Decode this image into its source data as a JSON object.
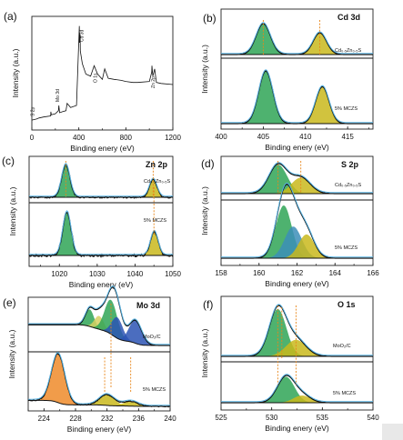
{
  "chart_data": [
    {
      "id": "a",
      "type": "line",
      "panel_label": "(a)",
      "title": "",
      "xlabel": "Binding enery (eV)",
      "ylabel": "Intensity (a.u.)",
      "xlim": [
        0,
        1200
      ],
      "xticks": [
        "0",
        "400",
        "800",
        "1200"
      ],
      "annotations": [
        "S 2p",
        "Mo 3d",
        "Cd 3d",
        "O 1s",
        "Zn 2p"
      ],
      "series": [
        {
          "x": [
            0,
            40,
            60,
            100,
            160,
            162,
            166,
            200,
            226,
            230,
            236,
            260,
            290,
            300,
            330,
            380,
            404,
            406,
            411,
            413,
            430,
            460,
            500,
            530,
            560,
            600,
            620,
            650,
            700,
            760,
            800,
            860,
            900,
            1000,
            1020,
            1022,
            1030,
            1045,
            1060,
            1100,
            1200
          ],
          "y": [
            6,
            7,
            8,
            9,
            10,
            14,
            11,
            12,
            15,
            20,
            13,
            14,
            15,
            22,
            18,
            20,
            96,
            80,
            88,
            72,
            60,
            50,
            48,
            58,
            50,
            45,
            55,
            46,
            45,
            44,
            43,
            42,
            42,
            43,
            52,
            58,
            48,
            55,
            42,
            41,
            40
          ]
        }
      ]
    },
    {
      "id": "b",
      "type": "area",
      "panel_label": "(b)",
      "title": "Cd 3d",
      "xlabel": "Binding enery (eV)",
      "ylabel": "Intensity (a.u.)",
      "xlim": [
        400,
        418
      ],
      "xticks": [
        "400",
        "405",
        "410",
        "415"
      ],
      "series": [
        {
          "name": "Cd₀.₅Zn₀.₅S",
          "peaks": [
            {
              "center": 405.0,
              "height": 1.0,
              "color": "#2fa556"
            },
            {
              "center": 411.7,
              "height": 0.7,
              "color": "#c9b81c"
            }
          ]
        },
        {
          "name": "5% MCZS",
          "peaks": [
            {
              "center": 405.3,
              "height": 1.0,
              "color": "#2fa556"
            },
            {
              "center": 412.0,
              "height": 0.7,
              "color": "#c9b81c"
            }
          ]
        }
      ]
    },
    {
      "id": "c",
      "type": "area",
      "panel_label": "(c)",
      "title": "Zn 2p",
      "xlabel": "Binding enery (eV)",
      "ylabel": "Intensity (a.u.)",
      "xlim": [
        1012,
        1050
      ],
      "xticks": [
        "1020",
        "1030",
        "1040",
        "1050"
      ],
      "series": [
        {
          "name": "Cd₀.₅Zn₀.₅S",
          "peaks": [
            {
              "center": 1021.7,
              "height": 1.0,
              "color": "#2fa556"
            },
            {
              "center": 1044.8,
              "height": 0.55,
              "color": "#c9b81c"
            }
          ]
        },
        {
          "name": "5% MCZS",
          "peaks": [
            {
              "center": 1022.0,
              "height": 1.0,
              "color": "#2fa556"
            },
            {
              "center": 1045.1,
              "height": 0.55,
              "color": "#c9b81c"
            }
          ]
        }
      ]
    },
    {
      "id": "d",
      "type": "area",
      "panel_label": "(d)",
      "title": "S 2p",
      "xlabel": "Binding enery (eV)",
      "ylabel": "Intensity (a.u.)",
      "xlim": [
        158,
        166
      ],
      "xticks": [
        "158",
        "160",
        "162",
        "164",
        "166"
      ],
      "series": [
        {
          "name": "Cd₀.₅Zn₀.₅S",
          "peaks": [
            {
              "center": 161.0,
              "height": 1.0,
              "color": "#2fa556"
            },
            {
              "center": 162.2,
              "height": 0.55,
              "color": "#c9b81c"
            }
          ]
        },
        {
          "name": "5% MCZS",
          "peaks": [
            {
              "center": 161.3,
              "height": 1.0,
              "color": "#2fa556"
            },
            {
              "center": 161.8,
              "height": 0.6,
              "color": "#3c8eb8"
            },
            {
              "center": 162.5,
              "height": 0.45,
              "color": "#c9b81c"
            }
          ]
        }
      ]
    },
    {
      "id": "e",
      "type": "area",
      "panel_label": "(e)",
      "title": "Mo 3d",
      "xlabel": "Binding enery (eV)",
      "ylabel": "Intensity (a.u.)",
      "xlim": [
        222,
        240
      ],
      "xticks": [
        "224",
        "228",
        "232",
        "236",
        "240"
      ],
      "series": [
        {
          "name": "MoO₂/C",
          "peaks": [
            {
              "center": 229.8,
              "height": 0.45,
              "color": "#2fa556"
            },
            {
              "center": 231.0,
              "height": 0.35,
              "color": "#d6d061"
            },
            {
              "center": 232.5,
              "height": 0.9,
              "color": "#2fa556"
            },
            {
              "center": 233.3,
              "height": 0.55,
              "color": "#2b54b4"
            },
            {
              "center": 235.6,
              "height": 0.6,
              "color": "#2b54b4"
            }
          ]
        },
        {
          "name": "5% MCZS",
          "peaks": [
            {
              "center": 225.8,
              "height": 1.0,
              "color": "#ee8b2a"
            },
            {
              "center": 232.0,
              "height": 0.22,
              "color": "#c9b81c"
            },
            {
              "center": 235.0,
              "height": 0.1,
              "color": "#c9b81c"
            }
          ]
        }
      ]
    },
    {
      "id": "f",
      "type": "area",
      "panel_label": "(f)",
      "title": "O 1s",
      "xlabel": "Binding enery (eV)",
      "ylabel": "Intensity (a.u.)",
      "xlim": [
        525,
        540
      ],
      "xticks": [
        "525",
        "530",
        "535",
        "540"
      ],
      "series": [
        {
          "name": "MoO₂/C",
          "peaks": [
            {
              "center": 530.6,
              "height": 1.0,
              "color": "#2fa556"
            },
            {
              "center": 532.4,
              "height": 0.35,
              "color": "#c9b81c"
            }
          ]
        },
        {
          "name": "5% MCZS",
          "peaks": [
            {
              "center": 531.4,
              "height": 0.65,
              "color": "#2fa556"
            },
            {
              "center": 533.0,
              "height": 0.18,
              "color": "#c9b81c"
            }
          ]
        }
      ]
    }
  ]
}
